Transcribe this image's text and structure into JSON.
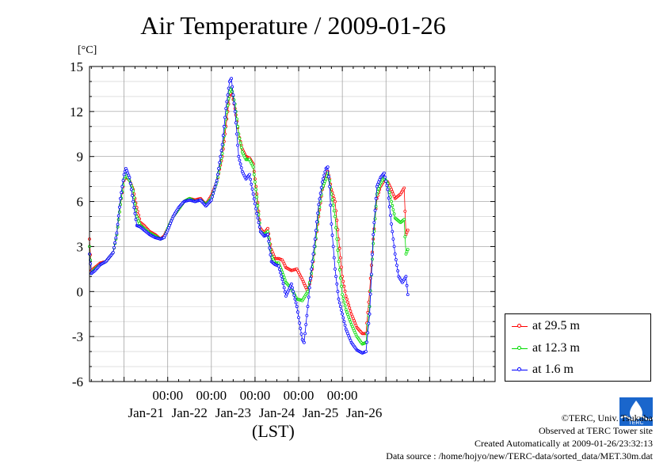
{
  "title": "Air Temperature / 2009-01-26",
  "unit_label": "[°C]",
  "xlabel": "(LST)",
  "legend": [
    {
      "label": "at 29.5 m",
      "color": "#ff0000"
    },
    {
      "label": "at 12.3 m",
      "color": "#00dd00"
    },
    {
      "label": "at 1.6 m",
      "color": "#0000ff"
    }
  ],
  "credits": {
    "copyright": "©TERC, Univ. Tsukuba",
    "observed": "Observed at TERC Tower site",
    "created": "Created Automatically at 2009-01-26/23:32:13",
    "source": "Data source : /home/hojyo/new/TERC-data/sorted_data/MET.30m.dat"
  },
  "logo_text": "TERC",
  "chart_data": {
    "type": "line",
    "title": "Air Temperature / 2009-01-26",
    "xlabel": "(LST)",
    "ylabel": "[°C]",
    "ylim": [
      -6,
      15
    ],
    "y_ticks": [
      15,
      12,
      9,
      6,
      3,
      0,
      -3,
      -6
    ],
    "xlim_hours": [
      -43,
      180
    ],
    "x_tick_labels_time": [
      "00:00",
      "00:00",
      "00:00",
      "00:00",
      "00:00"
    ],
    "x_tick_labels_date": [
      "Jan-21",
      "Jan-22",
      "Jan-23",
      "Jan-24",
      "Jan-25",
      "Jan-26"
    ],
    "grid": true,
    "legend_position": "bottom-right outside",
    "x_unit": "hours from 2009-01-22 00:00 LST",
    "series": [
      {
        "name": "at 29.5 m",
        "color": "#ff0000",
        "points": [
          [
            -43,
            3.5
          ],
          [
            -42,
            1.4
          ],
          [
            -40,
            1.6
          ],
          [
            -37,
            1.9
          ],
          [
            -34,
            2.0
          ],
          [
            -30,
            2.6
          ],
          [
            -28,
            3.8
          ],
          [
            -26,
            5.8
          ],
          [
            -24,
            7.4
          ],
          [
            -23,
            7.7
          ],
          [
            -21,
            7.4
          ],
          [
            -19,
            6.8
          ],
          [
            -17,
            5.6
          ],
          [
            -15,
            4.6
          ],
          [
            -13,
            4.4
          ],
          [
            -10,
            4.0
          ],
          [
            -7,
            3.8
          ],
          [
            -4,
            3.5
          ],
          [
            -2,
            3.7
          ],
          [
            0,
            4.2
          ],
          [
            3,
            5.0
          ],
          [
            6,
            5.5
          ],
          [
            9,
            6.0
          ],
          [
            12,
            6.2
          ],
          [
            15,
            6.1
          ],
          [
            18,
            6.2
          ],
          [
            21,
            5.8
          ],
          [
            24,
            6.4
          ],
          [
            27,
            7.3
          ],
          [
            30,
            9.0
          ],
          [
            32,
            11.0
          ],
          [
            34,
            13.0
          ],
          [
            35,
            13.4
          ],
          [
            37,
            12.2
          ],
          [
            39,
            10.5
          ],
          [
            41,
            9.5
          ],
          [
            43,
            9.0
          ],
          [
            45,
            8.9
          ],
          [
            47,
            8.5
          ],
          [
            49,
            6.5
          ],
          [
            51,
            4.2
          ],
          [
            53,
            3.9
          ],
          [
            55,
            4.2
          ],
          [
            57,
            2.8
          ],
          [
            59,
            2.2
          ],
          [
            61,
            2.2
          ],
          [
            63,
            2.1
          ],
          [
            65,
            1.6
          ],
          [
            68,
            1.4
          ],
          [
            71,
            1.5
          ],
          [
            74,
            0.8
          ],
          [
            77,
            0.0
          ],
          [
            79,
            1.0
          ],
          [
            81,
            3.0
          ],
          [
            83,
            5.0
          ],
          [
            85,
            6.8
          ],
          [
            87,
            7.6
          ],
          [
            88,
            8.0
          ],
          [
            89,
            7.5
          ],
          [
            90,
            6.8
          ],
          [
            92,
            6.0
          ],
          [
            94,
            3.5
          ],
          [
            96,
            1.0
          ],
          [
            98,
            -0.3
          ],
          [
            101,
            -1.5
          ],
          [
            104,
            -2.4
          ],
          [
            107,
            -2.8
          ],
          [
            109,
            -2.8
          ],
          [
            111,
            0.0
          ],
          [
            113,
            3.5
          ],
          [
            115,
            6.2
          ],
          [
            117,
            7.0
          ],
          [
            119,
            7.4
          ],
          [
            121,
            7.3
          ],
          [
            123,
            6.8
          ],
          [
            125,
            6.2
          ],
          [
            128,
            6.5
          ],
          [
            130,
            6.9
          ],
          [
            131,
            3.8
          ],
          [
            132,
            4.1
          ]
        ]
      },
      {
        "name": "at 12.3 m",
        "color": "#00dd00",
        "points": [
          [
            -43,
            3.0
          ],
          [
            -42,
            1.2
          ],
          [
            -40,
            1.5
          ],
          [
            -37,
            1.8
          ],
          [
            -34,
            2.0
          ],
          [
            -30,
            2.6
          ],
          [
            -28,
            3.8
          ],
          [
            -26,
            5.8
          ],
          [
            -24,
            7.5
          ],
          [
            -23,
            7.8
          ],
          [
            -21,
            7.4
          ],
          [
            -19,
            6.7
          ],
          [
            -17,
            5.0
          ],
          [
            -15,
            4.4
          ],
          [
            -13,
            4.2
          ],
          [
            -10,
            3.9
          ],
          [
            -7,
            3.7
          ],
          [
            -4,
            3.5
          ],
          [
            -2,
            3.6
          ],
          [
            0,
            4.2
          ],
          [
            3,
            5.0
          ],
          [
            6,
            5.5
          ],
          [
            9,
            6.0
          ],
          [
            12,
            6.2
          ],
          [
            15,
            6.0
          ],
          [
            18,
            6.1
          ],
          [
            21,
            5.8
          ],
          [
            24,
            6.2
          ],
          [
            27,
            7.3
          ],
          [
            30,
            9.2
          ],
          [
            32,
            11.5
          ],
          [
            34,
            13.3
          ],
          [
            35,
            13.6
          ],
          [
            37,
            12.5
          ],
          [
            39,
            10.5
          ],
          [
            41,
            9.3
          ],
          [
            43,
            8.8
          ],
          [
            45,
            8.8
          ],
          [
            47,
            8.3
          ],
          [
            49,
            6.3
          ],
          [
            51,
            4.0
          ],
          [
            53,
            3.8
          ],
          [
            55,
            4.0
          ],
          [
            57,
            2.4
          ],
          [
            59,
            1.9
          ],
          [
            61,
            1.9
          ],
          [
            63,
            1.3
          ],
          [
            65,
            0.6
          ],
          [
            68,
            0.2
          ],
          [
            71,
            -0.5
          ],
          [
            74,
            -0.6
          ],
          [
            77,
            0.0
          ],
          [
            79,
            1.2
          ],
          [
            81,
            3.0
          ],
          [
            83,
            5.2
          ],
          [
            85,
            6.9
          ],
          [
            87,
            7.5
          ],
          [
            88,
            7.9
          ],
          [
            89,
            7.4
          ],
          [
            90,
            6.5
          ],
          [
            92,
            5.0
          ],
          [
            94,
            2.0
          ],
          [
            96,
            -0.2
          ],
          [
            98,
            -1.2
          ],
          [
            101,
            -2.2
          ],
          [
            104,
            -3.0
          ],
          [
            107,
            -3.5
          ],
          [
            109,
            -3.4
          ],
          [
            111,
            -1.0
          ],
          [
            113,
            3.2
          ],
          [
            115,
            6.5
          ],
          [
            117,
            7.2
          ],
          [
            119,
            7.6
          ],
          [
            121,
            7.2
          ],
          [
            123,
            6.0
          ],
          [
            125,
            4.9
          ],
          [
            128,
            4.6
          ],
          [
            130,
            4.8
          ],
          [
            131,
            2.5
          ],
          [
            132,
            2.8
          ]
        ]
      },
      {
        "name": "at 1.6 m",
        "color": "#0000ff",
        "points": [
          [
            -43,
            2.5
          ],
          [
            -42,
            1.2
          ],
          [
            -40,
            1.4
          ],
          [
            -37,
            1.8
          ],
          [
            -34,
            2.0
          ],
          [
            -30,
            2.6
          ],
          [
            -28,
            3.9
          ],
          [
            -26,
            6.2
          ],
          [
            -24,
            7.8
          ],
          [
            -23,
            8.2
          ],
          [
            -21,
            7.6
          ],
          [
            -19,
            6.0
          ],
          [
            -17,
            4.4
          ],
          [
            -15,
            4.3
          ],
          [
            -13,
            4.1
          ],
          [
            -10,
            3.8
          ],
          [
            -7,
            3.6
          ],
          [
            -4,
            3.5
          ],
          [
            -2,
            3.6
          ],
          [
            0,
            4.1
          ],
          [
            3,
            5.0
          ],
          [
            6,
            5.6
          ],
          [
            9,
            6.0
          ],
          [
            12,
            6.1
          ],
          [
            15,
            6.0
          ],
          [
            18,
            6.1
          ],
          [
            21,
            5.7
          ],
          [
            24,
            6.1
          ],
          [
            27,
            7.4
          ],
          [
            30,
            9.8
          ],
          [
            32,
            12.2
          ],
          [
            34,
            14.0
          ],
          [
            35,
            14.2
          ],
          [
            37,
            12.0
          ],
          [
            39,
            9.0
          ],
          [
            41,
            8.0
          ],
          [
            43,
            7.5
          ],
          [
            45,
            7.8
          ],
          [
            47,
            6.5
          ],
          [
            49,
            5.2
          ],
          [
            51,
            4.0
          ],
          [
            53,
            3.7
          ],
          [
            55,
            3.8
          ],
          [
            57,
            2.0
          ],
          [
            59,
            1.8
          ],
          [
            61,
            1.7
          ],
          [
            63,
            0.8
          ],
          [
            65,
            -0.3
          ],
          [
            68,
            0.5
          ],
          [
            71,
            -1.0
          ],
          [
            74,
            -3.2
          ],
          [
            75,
            -3.4
          ],
          [
            77,
            -1.0
          ],
          [
            79,
            1.5
          ],
          [
            81,
            3.5
          ],
          [
            83,
            5.8
          ],
          [
            85,
            7.3
          ],
          [
            87,
            8.2
          ],
          [
            88,
            8.3
          ],
          [
            89,
            7.0
          ],
          [
            90,
            4.5
          ],
          [
            92,
            1.5
          ],
          [
            94,
            -0.5
          ],
          [
            96,
            -1.5
          ],
          [
            98,
            -2.5
          ],
          [
            101,
            -3.4
          ],
          [
            104,
            -3.9
          ],
          [
            107,
            -4.1
          ],
          [
            109,
            -4.0
          ],
          [
            111,
            -1.5
          ],
          [
            113,
            3.8
          ],
          [
            115,
            7.0
          ],
          [
            117,
            7.6
          ],
          [
            119,
            7.9
          ],
          [
            121,
            6.8
          ],
          [
            123,
            4.5
          ],
          [
            125,
            2.5
          ],
          [
            127,
            1.0
          ],
          [
            129,
            0.6
          ],
          [
            131,
            1.0
          ],
          [
            132,
            -0.2
          ]
        ]
      }
    ]
  }
}
